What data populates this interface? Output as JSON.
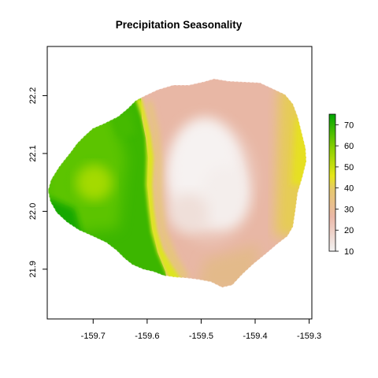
{
  "title": "Precipitation Seasonality",
  "x_axis": {
    "ticks": [
      -159.7,
      -159.6,
      -159.5,
      -159.4,
      -159.3
    ],
    "tick_labels": [
      "-159.7",
      "-159.6",
      "-159.5",
      "-159.4",
      "-159.3"
    ],
    "range": [
      -159.785,
      -159.295
    ]
  },
  "y_axis": {
    "ticks": [
      21.9,
      22.0,
      22.1,
      22.2
    ],
    "tick_labels": [
      "21.9",
      "22.0",
      "22.1",
      "22.2"
    ],
    "range": [
      21.814,
      22.285
    ]
  },
  "legend": {
    "ticks": [
      10,
      20,
      30,
      40,
      50,
      60,
      70
    ],
    "tick_labels": [
      "10",
      "20",
      "30",
      "40",
      "50",
      "60",
      "70"
    ],
    "range": [
      10,
      75
    ],
    "placement": "right",
    "colors": {
      "low": "#f2f2f2",
      "mid_low": "#e8b7a5",
      "mid": "#e6c86e",
      "mid_high": "#e6e619",
      "high": "#00a600"
    }
  },
  "map_description_values": {
    "west_region_range": [
      55,
      75
    ],
    "central_east_range": [
      10,
      30
    ],
    "east_coast_range": [
      35,
      45
    ]
  }
}
